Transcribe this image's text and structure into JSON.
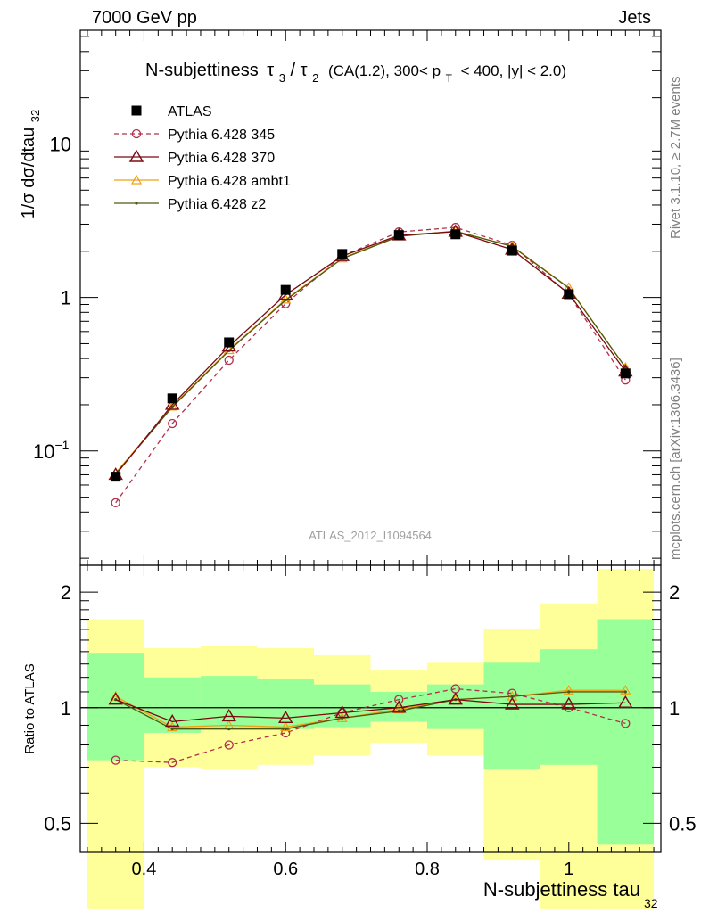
{
  "header": {
    "energy_label": "7000 GeV pp",
    "process_label": "Jets"
  },
  "side_labels": {
    "rivet": "Rivet 3.1.10, ≥ 2.7M events",
    "mcplots": "mcplots.cern.ch [arXiv:1306.3436]"
  },
  "analysis_id": "ATLAS_2012_I1094564",
  "colors": {
    "atlas": "#000000",
    "p345": "#b0304a",
    "p370": "#7a0a10",
    "ambt1": "#f0a010",
    "z2": "#4a5a10",
    "band_inner": "#99ff99",
    "band_outer": "#ffff99"
  },
  "chart_data": [
    {
      "type": "line",
      "panel": "main",
      "title_main": "N-subjettiness",
      "title_tau_a": "τ",
      "title_sub_a": "3",
      "title_slash": "/",
      "title_tau_b": "τ",
      "title_sub_b": "2",
      "title_cuts_1": "(CA(1.2), 300< p",
      "title_cuts_sub": "T",
      "title_cuts_2": "< 400, |y| < 2.0)",
      "ylabel_main": "1/σ dσ/dtau",
      "ylabel_sub": "32",
      "yscale": "log",
      "xlim": [
        0.31,
        1.13
      ],
      "ylim": [
        0.018,
        55
      ],
      "ytick_labels": [
        {
          "value": 10,
          "text": "10"
        },
        {
          "value": 1,
          "text": "1"
        }
      ],
      "ytick_power": {
        "value": 0.1,
        "base": "10",
        "exponent": "−1"
      },
      "x": [
        0.36,
        0.44,
        0.52,
        0.6,
        0.68,
        0.76,
        0.84,
        0.92,
        1.0,
        1.08
      ],
      "series": [
        {
          "name": "ATLAS",
          "key": "atlas",
          "marker": "square",
          "dash": false,
          "values": [
            0.068,
            0.22,
            0.51,
            1.12,
            1.92,
            2.55,
            2.58,
            2.02,
            1.05,
            0.32
          ]
        },
        {
          "name": "Pythia 6.428 345",
          "key": "p345",
          "marker": "circle",
          "dash": true,
          "values": [
            0.046,
            0.151,
            0.39,
            0.91,
            1.86,
            2.67,
            2.86,
            2.19,
            1.05,
            0.29
          ]
        },
        {
          "name": "Pythia 6.428 370",
          "key": "p370",
          "marker": "triangle",
          "dash": false,
          "values": [
            0.07,
            0.2,
            0.48,
            1.04,
            1.86,
            2.54,
            2.68,
            2.05,
            1.06,
            0.33
          ]
        },
        {
          "name": "Pythia 6.428 ambt1",
          "key": "ambt1",
          "marker": "triangle-small",
          "dash": false,
          "values": [
            0.072,
            0.195,
            0.455,
            0.97,
            1.8,
            2.52,
            2.7,
            2.16,
            1.16,
            0.35
          ]
        },
        {
          "name": "Pythia 6.428 z2",
          "key": "z2",
          "marker": "dot",
          "dash": false,
          "values": [
            0.071,
            0.193,
            0.45,
            0.96,
            1.79,
            2.5,
            2.7,
            2.15,
            1.15,
            0.35
          ]
        }
      ]
    },
    {
      "type": "line",
      "panel": "ratio",
      "ylabel": "Ratio to ATLAS",
      "xlabel": "N-subjettiness tau",
      "xlabel_sub": "32",
      "yscale": "log",
      "xlim": [
        0.31,
        1.13
      ],
      "ylim": [
        0.42,
        2.35
      ],
      "reference_line": 1,
      "xtick_labels": [
        {
          "value": 0.4,
          "text": "0.4"
        },
        {
          "value": 0.6,
          "text": "0.6"
        },
        {
          "value": 0.8,
          "text": "0.8"
        },
        {
          "value": 1.0,
          "text": "1"
        }
      ],
      "ytick_labels": [
        {
          "value": 2,
          "text": "2"
        },
        {
          "value": 1,
          "text": "1"
        },
        {
          "value": 0.5,
          "text": "0.5"
        }
      ],
      "bins": [
        {
          "lo": 0.32,
          "hi": 0.4,
          "inner": [
            0.73,
            1.39
          ],
          "outer": [
            0.3,
            1.7
          ]
        },
        {
          "lo": 0.4,
          "hi": 0.48,
          "inner": [
            0.86,
            1.2
          ],
          "outer": [
            0.7,
            1.43
          ]
        },
        {
          "lo": 0.48,
          "hi": 0.56,
          "inner": [
            0.88,
            1.21
          ],
          "outer": [
            0.69,
            1.45
          ]
        },
        {
          "lo": 0.56,
          "hi": 0.64,
          "inner": [
            0.88,
            1.19
          ],
          "outer": [
            0.71,
            1.43
          ]
        },
        {
          "lo": 0.64,
          "hi": 0.72,
          "inner": [
            0.89,
            1.15
          ],
          "outer": [
            0.75,
            1.37
          ]
        },
        {
          "lo": 0.72,
          "hi": 0.8,
          "inner": [
            0.92,
            1.1
          ],
          "outer": [
            0.81,
            1.25
          ]
        },
        {
          "lo": 0.8,
          "hi": 0.88,
          "inner": [
            0.88,
            1.15
          ],
          "outer": [
            0.75,
            1.31
          ]
        },
        {
          "lo": 0.88,
          "hi": 0.96,
          "inner": [
            0.69,
            1.31
          ],
          "outer": [
            0.4,
            1.6
          ]
        },
        {
          "lo": 0.96,
          "hi": 1.04,
          "inner": [
            0.71,
            1.42
          ],
          "outer": [
            0.3,
            1.87
          ]
        },
        {
          "lo": 1.04,
          "hi": 1.12,
          "inner": [
            0.44,
            1.7
          ],
          "outer": [
            0.3,
            2.3
          ]
        }
      ],
      "series": [
        {
          "name": "Pythia 6.428 345",
          "key": "p345",
          "marker": "circle",
          "dash": true,
          "values": [
            0.73,
            0.72,
            0.8,
            0.86,
            0.97,
            1.05,
            1.12,
            1.09,
            1.0,
            0.91
          ]
        },
        {
          "name": "Pythia 6.428 370",
          "key": "p370",
          "marker": "triangle",
          "dash": false,
          "values": [
            1.05,
            0.92,
            0.95,
            0.94,
            0.97,
            1.0,
            1.05,
            1.02,
            1.02,
            1.03
          ]
        },
        {
          "name": "Pythia 6.428 ambt1",
          "key": "ambt1",
          "marker": "triangle-small",
          "dash": false,
          "values": [
            1.07,
            0.89,
            0.9,
            0.89,
            0.94,
            0.99,
            1.05,
            1.07,
            1.11,
            1.11
          ]
        },
        {
          "name": "Pythia 6.428 z2",
          "key": "z2",
          "marker": "dot",
          "dash": false,
          "values": [
            1.05,
            0.88,
            0.88,
            0.88,
            0.94,
            0.98,
            1.05,
            1.07,
            1.1,
            1.1
          ]
        }
      ]
    }
  ]
}
